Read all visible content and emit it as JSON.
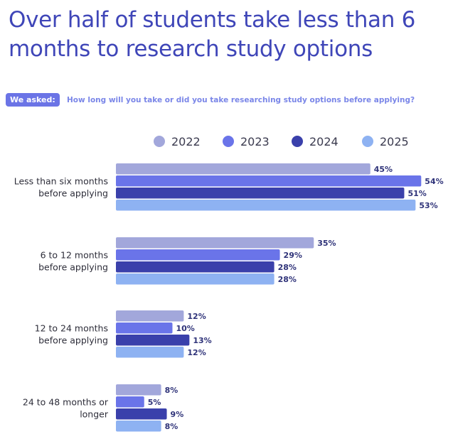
{
  "title": "Over half of students take less than 6 months to research study options",
  "asked_badge": "We asked:",
  "question": "How long will you take or did you take researching study options before applying?",
  "colors": {
    "title": "#3f46b8",
    "badge": "#6b74e6",
    "question": "#7a86e8"
  },
  "chart_data": {
    "type": "bar",
    "orientation": "horizontal",
    "categories": [
      [
        "Less than six months",
        "before applying"
      ],
      [
        "6 to 12 months",
        "before applying"
      ],
      [
        "12 to 24 months",
        "before applying"
      ],
      [
        "24 to 48 months or",
        "longer"
      ]
    ],
    "series": [
      {
        "name": "2022",
        "color": "#a2a7db",
        "values": [
          45,
          35,
          12,
          8
        ]
      },
      {
        "name": "2023",
        "color": "#6a74e9",
        "values": [
          54,
          29,
          10,
          5
        ]
      },
      {
        "name": "2024",
        "color": "#3a40ab",
        "values": [
          51,
          28,
          13,
          9
        ]
      },
      {
        "name": "2025",
        "color": "#8eb2f2",
        "values": [
          53,
          28,
          12,
          8
        ]
      }
    ],
    "value_suffix": "%",
    "xlim": [
      0,
      60
    ],
    "legend_position": "top",
    "grid": false
  }
}
